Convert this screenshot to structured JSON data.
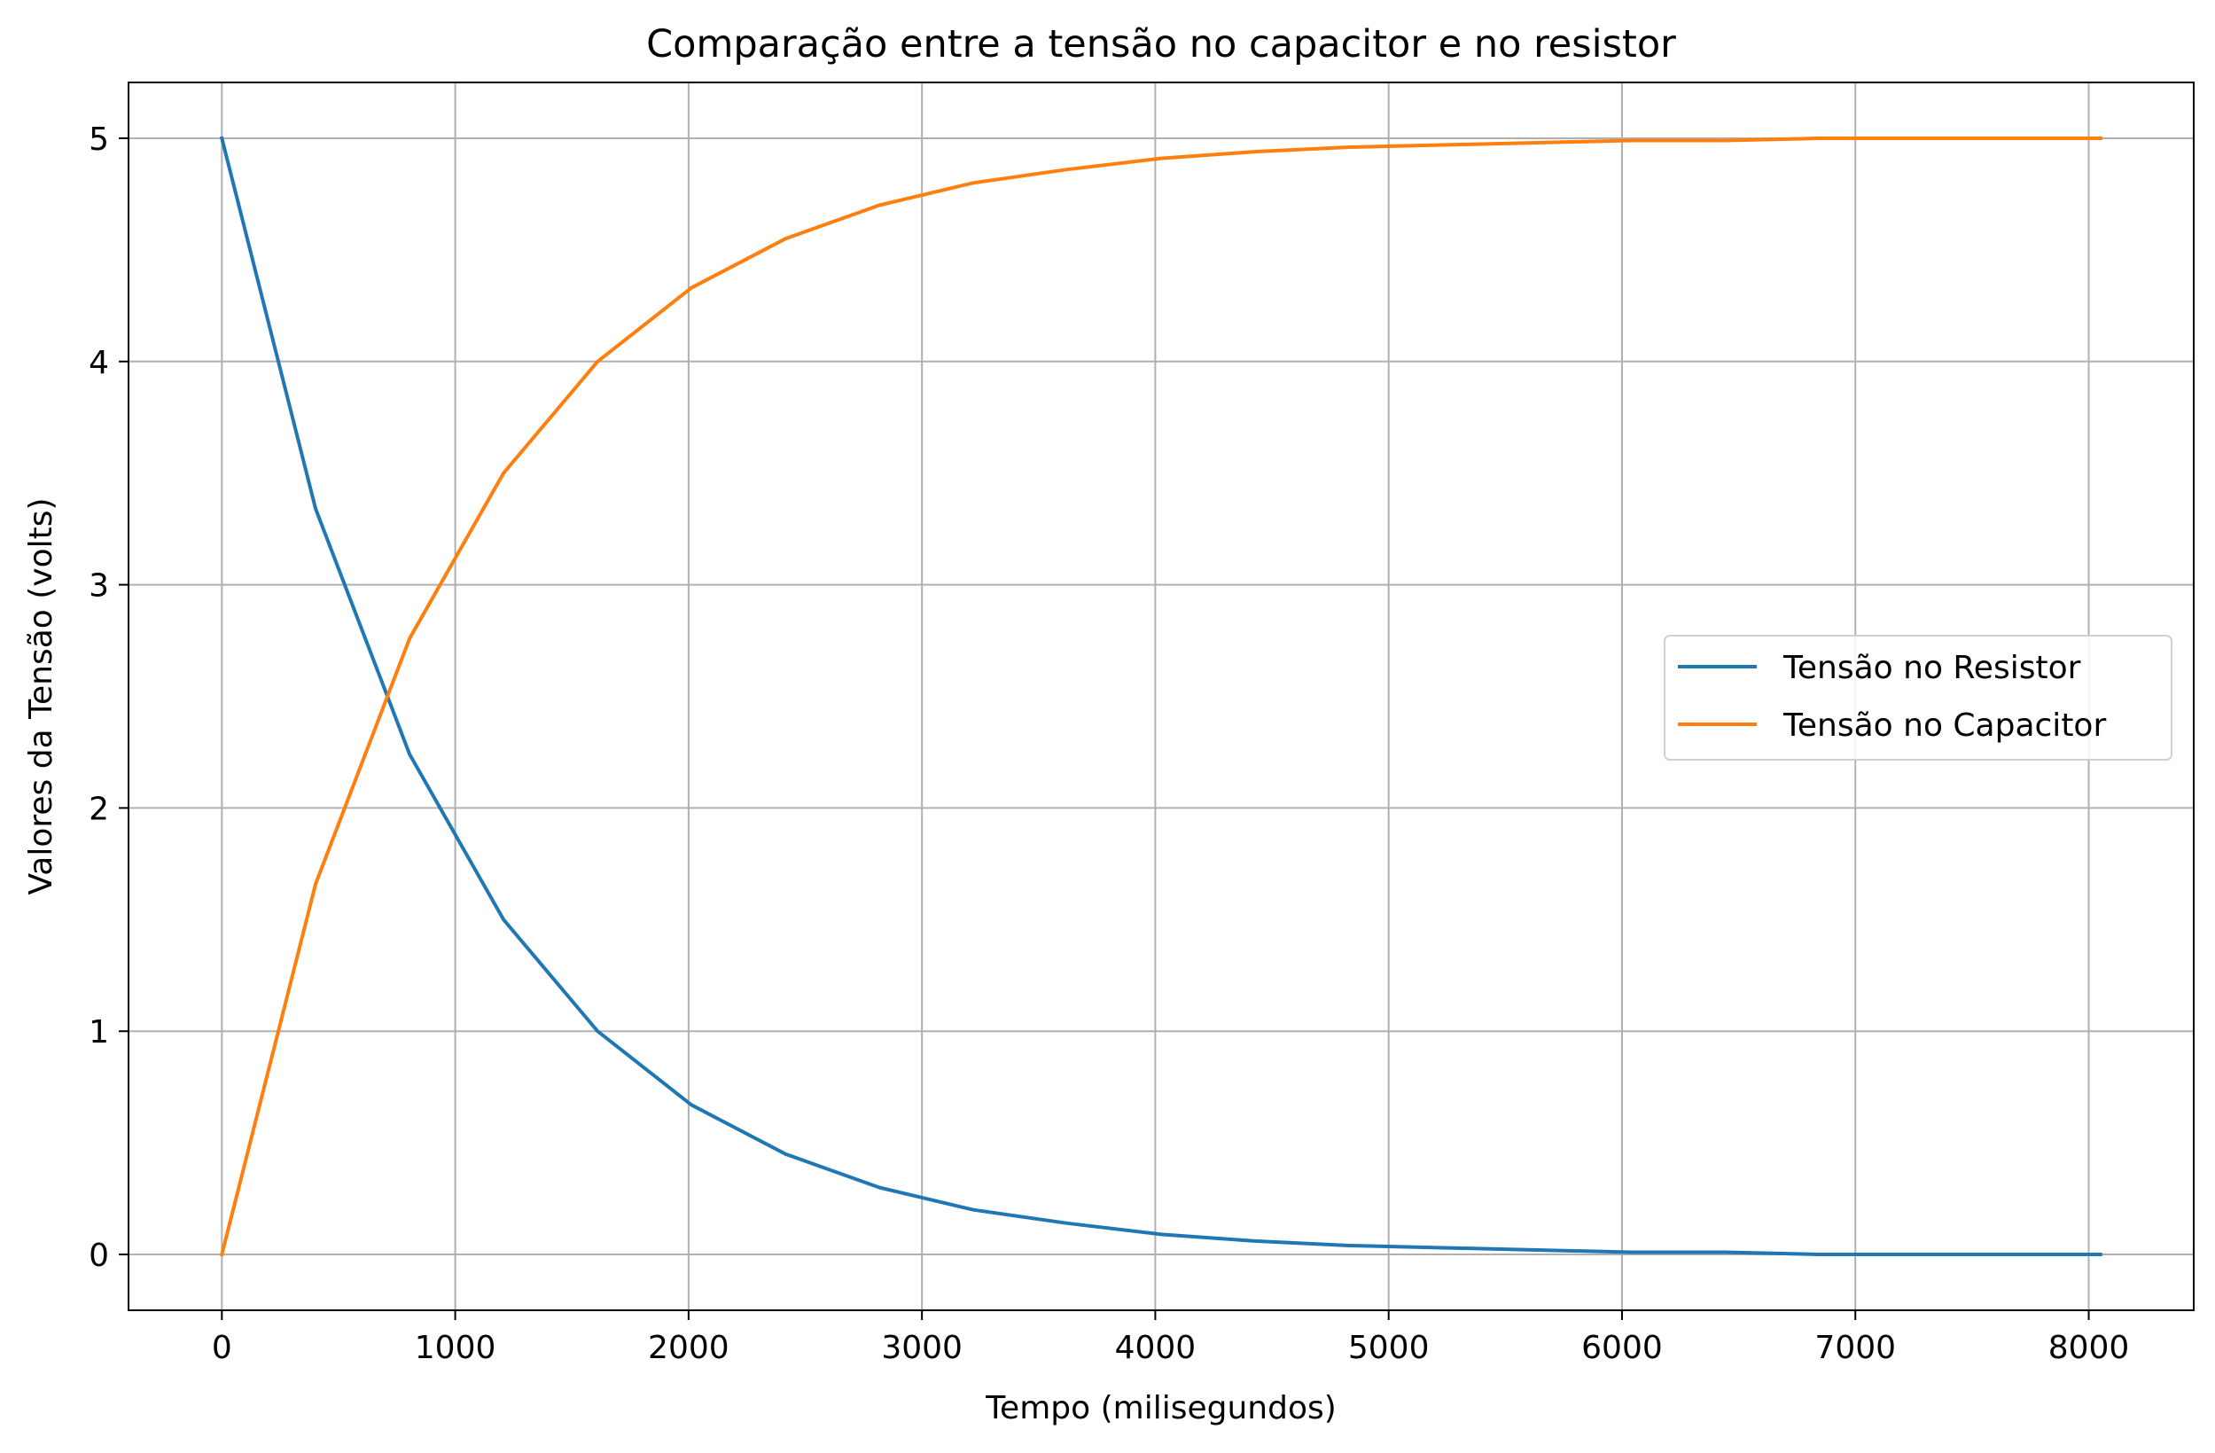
{
  "chart_data": {
    "type": "line",
    "title": "Comparação entre a tensão no capacitor e no resistor",
    "xlabel": "Tempo (milisegundos)",
    "ylabel": "Valores da Tensão (volts)",
    "xlim": [
      -400,
      8450
    ],
    "ylim": [
      -0.25,
      5.25
    ],
    "xticks": [
      0,
      1000,
      2000,
      3000,
      4000,
      5000,
      6000,
      7000,
      8000
    ],
    "xtick_labels": [
      "0",
      "1000",
      "2000",
      "3000",
      "4000",
      "5000",
      "6000",
      "7000",
      "8000"
    ],
    "yticks": [
      0,
      1,
      2,
      3,
      4,
      5
    ],
    "ytick_labels": [
      "0",
      "1",
      "2",
      "3",
      "4",
      "5"
    ],
    "grid": true,
    "legend_position": "center-right",
    "x": [
      0,
      402,
      805,
      1207,
      1610,
      2012,
      2415,
      2817,
      3220,
      3622,
      4025,
      4427,
      4830,
      5232,
      5635,
      6037,
      6440,
      6842,
      7245,
      7647,
      8050
    ],
    "series": [
      {
        "name": "Tensão no Resistor",
        "color": "#1f77b4",
        "values": [
          5.0,
          3.34,
          2.24,
          1.5,
          1.0,
          0.67,
          0.45,
          0.3,
          0.2,
          0.14,
          0.09,
          0.06,
          0.04,
          0.03,
          0.02,
          0.01,
          0.01,
          0.0,
          0.0,
          0.0,
          0.0
        ]
      },
      {
        "name": "Tensão no Capacitor",
        "color": "#ff7f0e",
        "values": [
          0.0,
          1.66,
          2.76,
          3.5,
          4.0,
          4.33,
          4.55,
          4.7,
          4.8,
          4.86,
          4.91,
          4.94,
          4.96,
          4.97,
          4.98,
          4.99,
          4.99,
          5.0,
          5.0,
          5.0,
          5.0
        ]
      }
    ]
  }
}
